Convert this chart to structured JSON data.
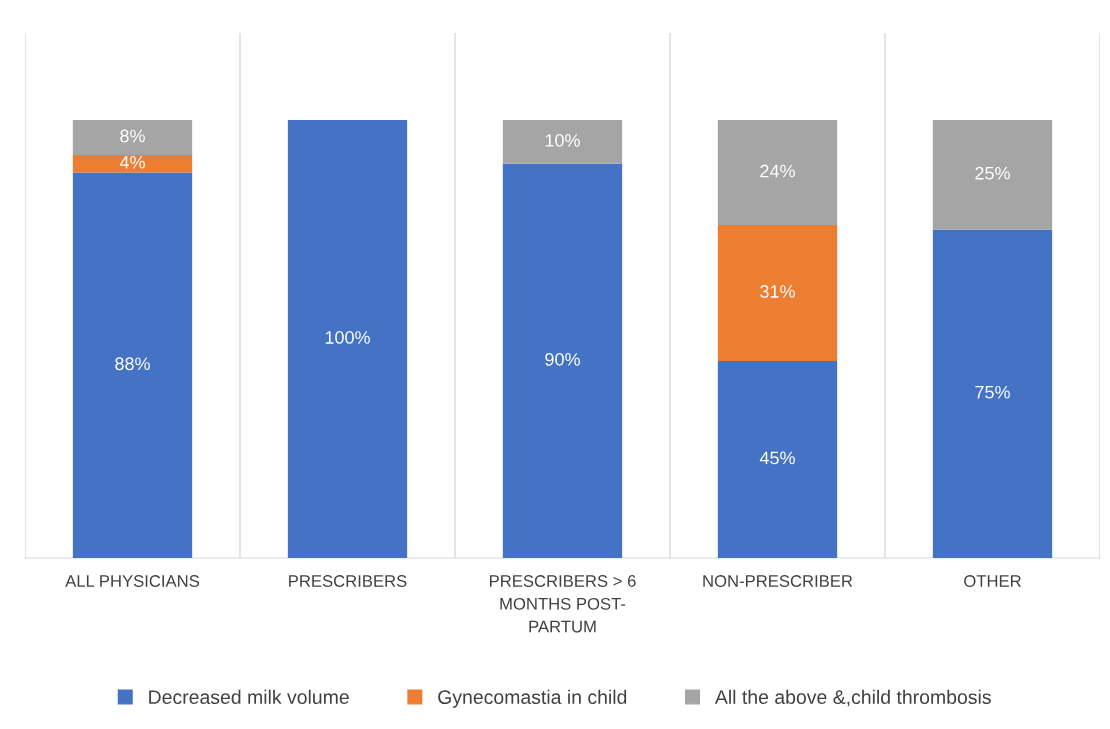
{
  "chart_data": {
    "type": "bar",
    "stacked": true,
    "grid": "x",
    "legend": "bottom",
    "tick_labels": "x",
    "categories": [
      "ALL PHYSICIANS",
      "PRESCRIBERS",
      "PRESCRIBERS > 6\nMONTHS POST-\nPARTUM",
      "NON-PRESCRIBER",
      "OTHER"
    ],
    "series": [
      {
        "name": "Decreased milk volume",
        "color": "#4472c4",
        "values": [
          88,
          100,
          90,
          45,
          75
        ],
        "value_labels": [
          "88%",
          "100%",
          "90%",
          "45%",
          "75%"
        ]
      },
      {
        "name": "Gynecomastia in child",
        "color": "#ed7d31",
        "values": [
          4,
          null,
          null,
          31,
          null
        ],
        "value_labels": [
          "4%",
          null,
          null,
          "31%",
          null
        ]
      },
      {
        "name": "All the above &,child thrombosis",
        "color": "#a5a5a5",
        "values": [
          8,
          null,
          10,
          24,
          25
        ],
        "value_labels": [
          "8%",
          null,
          "10%",
          "24%",
          "25%"
        ]
      }
    ]
  }
}
